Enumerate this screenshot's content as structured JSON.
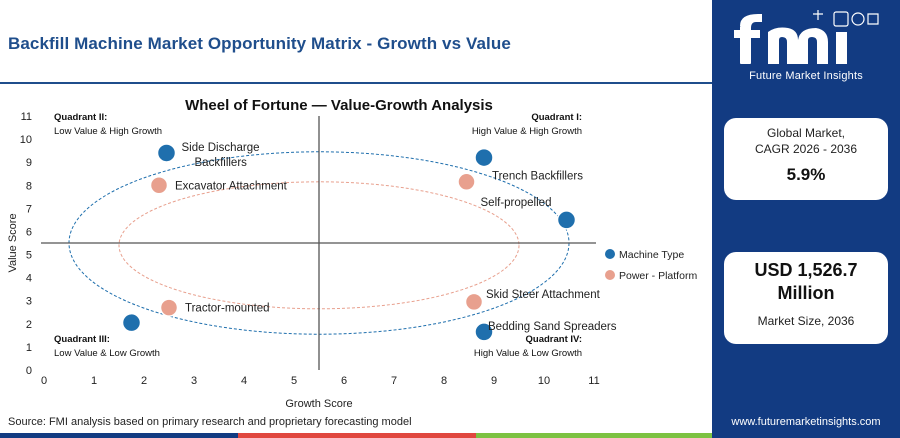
{
  "header": {
    "title": "Backfill Machine Market Opportunity Matrix - Growth vs Value"
  },
  "source": "Source: FMI analysis based on primary research and proprietary forecasting model",
  "brand": {
    "logo_text": "fmi",
    "tagline": "Future Market Insights",
    "url": "www.futuremarketinsights.com"
  },
  "stats": {
    "cagr_label_1": "Global Market,",
    "cagr_label_2": "CAGR 2026 - 2036",
    "cagr_value": "5.9%",
    "size_value_1": "USD 1,526.7",
    "size_value_2": "Million",
    "size_label": "Market Size, 2036"
  },
  "colors": {
    "brand_navy": "#123b82",
    "title_blue": "#1f4e8c",
    "machine_type": "#1f6fad",
    "power_platform": "#e8a08e",
    "footer_red": "#e0473f",
    "footer_green": "#7cc242"
  },
  "chart_data": {
    "type": "scatter",
    "title": "Wheel of Fortune — Value-Growth Analysis",
    "xlabel": "Growth Score",
    "ylabel": "Value Score",
    "xlim": [
      0,
      11
    ],
    "ylim": [
      0,
      11
    ],
    "xticks": [
      "0",
      "1",
      "2",
      "3",
      "4",
      "5",
      "6",
      "7",
      "8",
      "9",
      "10",
      "11"
    ],
    "yticks": [
      "0",
      "1",
      "2",
      "3",
      "4",
      "5",
      "6",
      "7",
      "8",
      "9",
      "10",
      "11"
    ],
    "grid": false,
    "legend_position": "right",
    "dividers": {
      "x": 5.5,
      "y": 5.5
    },
    "quadrants": [
      {
        "id": "q2",
        "title": "Quadrant II:",
        "subtitle": "Low Value & High Growth"
      },
      {
        "id": "q1",
        "title": "Quadrant I:",
        "subtitle": "High Value & High Growth"
      },
      {
        "id": "q3",
        "title": "Quadrant III:",
        "subtitle": "Low Value & Low Growth"
      },
      {
        "id": "q4",
        "title": "Quadrant IV:",
        "subtitle": "High Value & Low Growth"
      }
    ],
    "series": [
      {
        "name": "Machine Type",
        "color": "#1f6fad",
        "points": [
          {
            "label": "Side Discharge Backfillers",
            "x": 2.45,
            "y": 9.4
          },
          {
            "label": "Trench Backfillers",
            "x": 8.8,
            "y": 9.2
          },
          {
            "label": "",
            "x": 10.45,
            "y": 6.5
          },
          {
            "label": "",
            "x": 1.75,
            "y": 2.05
          },
          {
            "label": "Bedding Sand Spreaders",
            "x": 8.8,
            "y": 1.65
          }
        ]
      },
      {
        "name": "Power - Platform",
        "color": "#e8a08e",
        "points": [
          {
            "label": "Excavator Attachment",
            "x": 2.3,
            "y": 8.0
          },
          {
            "label": "Self-propelled",
            "x": 8.45,
            "y": 8.15
          },
          {
            "label": "Tractor-mounted",
            "x": 2.5,
            "y": 2.7
          },
          {
            "label": "Skid Steer Attachment",
            "x": 8.6,
            "y": 2.95
          }
        ]
      }
    ],
    "rings": [
      {
        "series": "Machine Type",
        "cx": 5.5,
        "cy": 5.5,
        "rx": 5.0,
        "ry": 3.95
      },
      {
        "series": "Power - Platform",
        "cx": 5.5,
        "cy": 5.4,
        "rx": 4.0,
        "ry": 2.75
      }
    ]
  }
}
